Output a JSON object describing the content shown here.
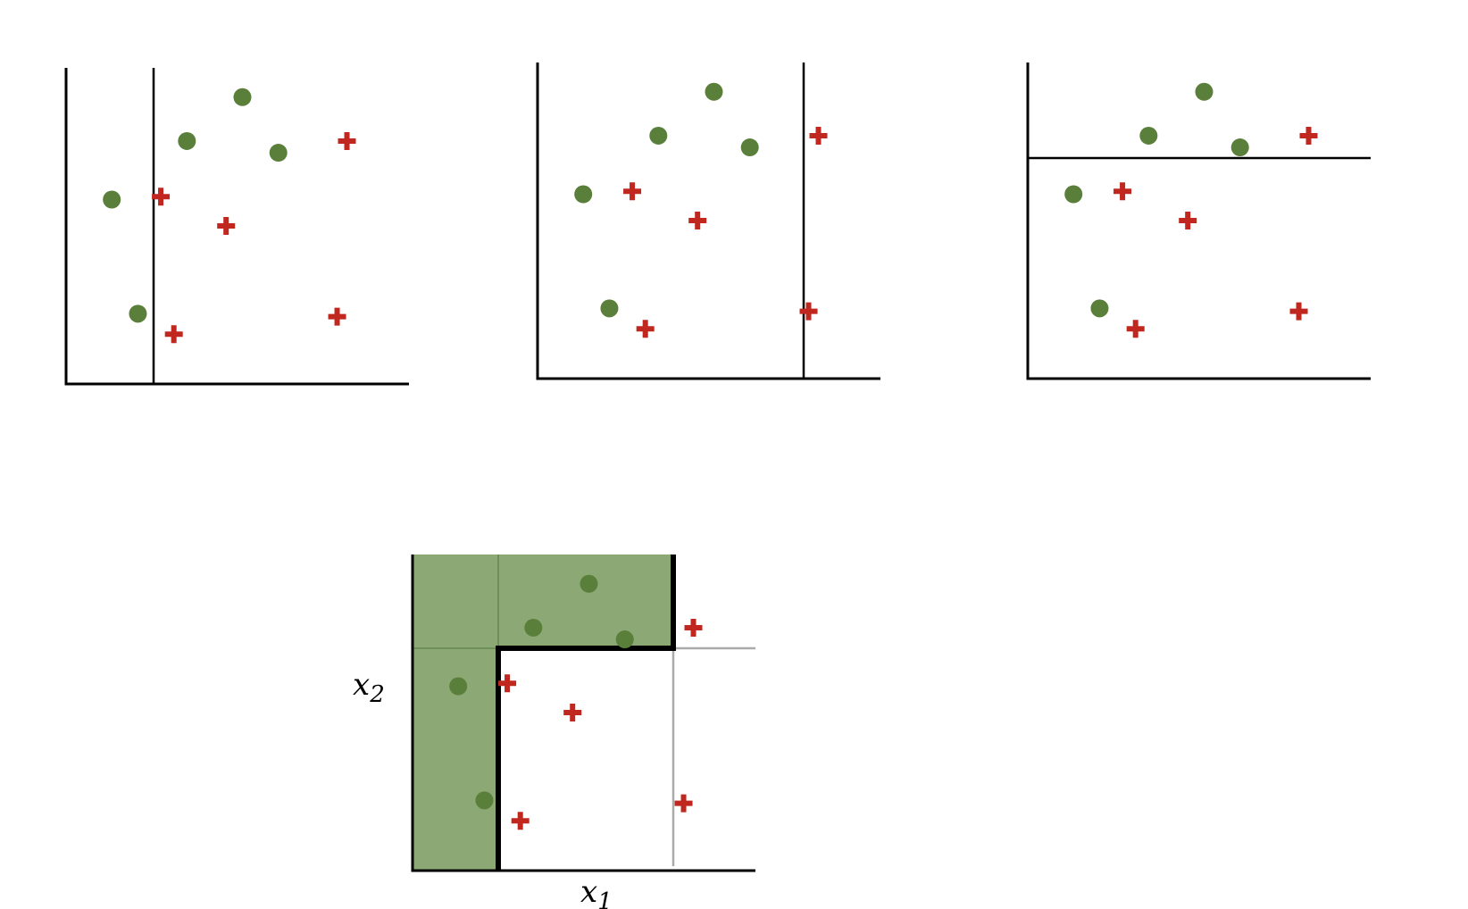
{
  "figure": {
    "colors": {
      "green_point": "#5a7f3a",
      "red_plus": "#c0281f",
      "green_region": "#8ca874",
      "axis": "#000000",
      "faint_split": "#aaaaaa"
    },
    "panels": [
      {
        "name": "panel-1",
        "split": "vertical-1"
      },
      {
        "name": "panel-2",
        "split": "vertical-2"
      },
      {
        "name": "panel-3",
        "split": "horizontal"
      }
    ],
    "combined": {
      "x_label": {
        "base": "x",
        "sub": "1"
      },
      "y_label": {
        "base": "x",
        "sub": "2"
      }
    },
    "dataset": {
      "green": [
        {
          "x1": 1.4,
          "x2": 6.3
        },
        {
          "x1": 2.2,
          "x2": 2.4
        },
        {
          "x1": 3.7,
          "x2": 8.3
        },
        {
          "x1": 5.4,
          "x2": 9.8
        },
        {
          "x1": 6.5,
          "x2": 7.9
        }
      ],
      "red": [
        {
          "x1": 2.9,
          "x2": 6.4
        },
        {
          "x1": 4.9,
          "x2": 5.4
        },
        {
          "x1": 3.3,
          "x2": 1.7
        },
        {
          "x1": 8.6,
          "x2": 8.3
        },
        {
          "x1": 8.3,
          "x2": 2.3
        }
      ]
    }
  }
}
